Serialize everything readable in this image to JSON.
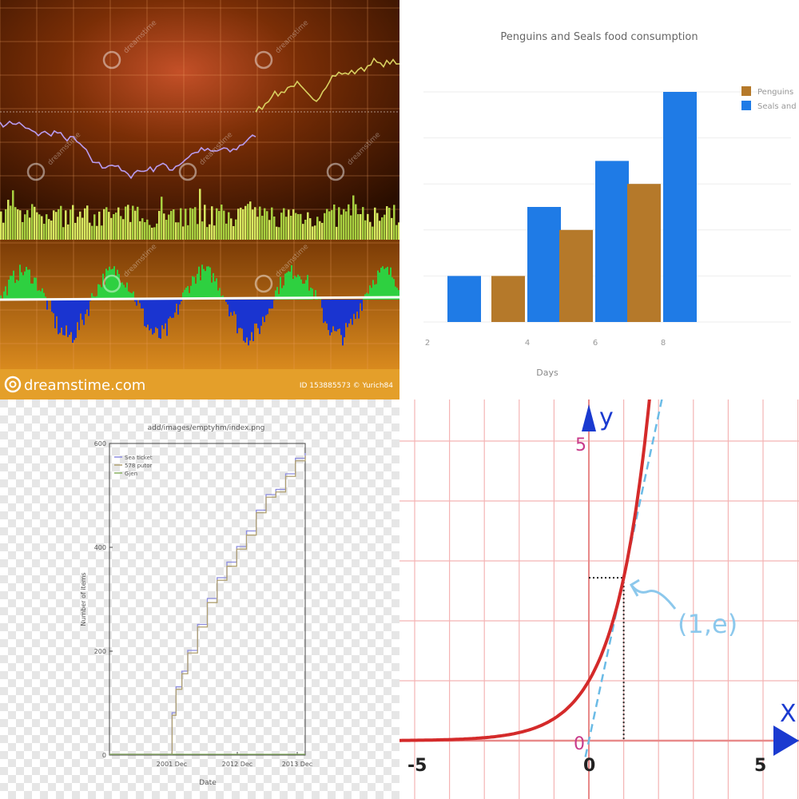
{
  "panels": {
    "stock": {
      "watermark": "dreamstime",
      "footer": {
        "brand": "dreamstime.com",
        "credit": "ID 153885573 © Yurich84"
      },
      "colors": {
        "bg_dark": "#3a1500",
        "bg_mid": "#8a4a10",
        "bg_light": "#c8781c",
        "footer": "#e49f2a"
      }
    },
    "bars": {
      "colors": {
        "penguins": "#b5792a",
        "seals": "#1f7be6"
      }
    },
    "lines": {
      "colors": {
        "line1": "#8c8ce0",
        "line2": "#b0a070",
        "line3": "#88b060"
      }
    },
    "exp": {
      "axis_y": "y",
      "axis_x": "X",
      "annotation": "(1,e)",
      "tick_neg5": "-5",
      "tick_0": "0",
      "tick_pos5": "5",
      "tick_y5": "5",
      "colors": {
        "curve": "#d42a2a",
        "tangent": "#6bbbe6",
        "grid": "#f4b4b4",
        "axis": "#e88a8a"
      }
    }
  },
  "chart_data": [
    {
      "type": "bar",
      "title": "Penguins and Seals food consumption",
      "xlabel": "Days",
      "categories": [
        "2",
        "4",
        "6",
        "8"
      ],
      "series": [
        {
          "name": "Penguins",
          "values": [
            0,
            1,
            2,
            3
          ]
        },
        {
          "name": "Seals and sea lions",
          "values": [
            1,
            2.5,
            3.5,
            5
          ]
        }
      ],
      "ylim": [
        0,
        5
      ],
      "legend": "top-right"
    },
    {
      "type": "line",
      "title": "add/images/emptyhm/index.png",
      "xlabel": "Date",
      "ylabel": "Number of items",
      "x_ticks": [
        "2001 Dec",
        "2012 Dec",
        "2013 Dec"
      ],
      "y_ticks": [
        0,
        200,
        400,
        600
      ],
      "ylim": [
        0,
        600
      ],
      "legend": "top-left",
      "series": [
        {
          "name": "Sea ticket",
          "x": [
            0,
            0.3,
            0.32,
            0.34,
            0.37,
            0.4,
            0.45,
            0.5,
            0.55,
            0.6,
            0.65,
            0.7,
            0.75,
            0.8,
            0.85,
            0.9,
            0.95,
            1.0
          ],
          "y": [
            0,
            0,
            80,
            130,
            160,
            200,
            250,
            300,
            340,
            370,
            400,
            430,
            470,
            500,
            510,
            540,
            570,
            580
          ]
        },
        {
          "name": "578 putor",
          "x": [
            0,
            0.3,
            0.32,
            0.34,
            0.37,
            0.4,
            0.45,
            0.5,
            0.55,
            0.6,
            0.65,
            0.7,
            0.75,
            0.8,
            0.85,
            0.9,
            0.95,
            1.0
          ],
          "y": [
            0,
            0,
            75,
            125,
            155,
            195,
            245,
            292,
            335,
            362,
            395,
            422,
            465,
            495,
            505,
            535,
            565,
            575
          ]
        },
        {
          "name": "Gjen",
          "x": [
            0,
            0.3,
            1.0
          ],
          "y": [
            0,
            0,
            0
          ]
        }
      ]
    },
    {
      "type": "line",
      "title": "",
      "xlabel": "X",
      "ylabel": "y",
      "xlim": [
        -5.5,
        6
      ],
      "ylim": [
        -0.6,
        6
      ],
      "x_ticks": [
        -5,
        0,
        5
      ],
      "y_ticks": [
        5
      ],
      "series": [
        {
          "name": "",
          "function": "e^x"
        },
        {
          "name": "",
          "function": "tangent at (1,e)"
        }
      ],
      "point": {
        "x": 1,
        "y": 2.718,
        "label": "(1,e)"
      }
    }
  ]
}
